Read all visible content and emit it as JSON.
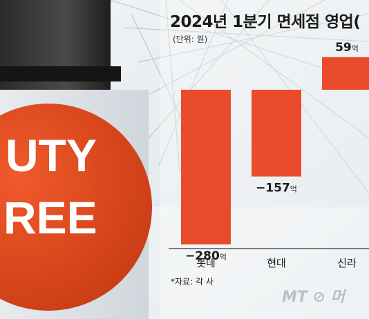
{
  "chart_data": {
    "type": "bar",
    "title": "2024년 1분기 면세점 영업(",
    "unit_note": "(단위: 원)",
    "categories": [
      "롯데",
      "현대",
      "신라"
    ],
    "values": [
      -280,
      -157,
      59
    ],
    "value_labels": [
      "−280억",
      "−157억",
      "59억"
    ],
    "bar_color": "#e94b2c",
    "source_note": "*자료: 각 사"
  },
  "photo": {
    "sign_text_line1": "UTY",
    "sign_text_line2": "REE",
    "sign_color": "#e2461f"
  },
  "watermark": "MT ⊘ 머"
}
